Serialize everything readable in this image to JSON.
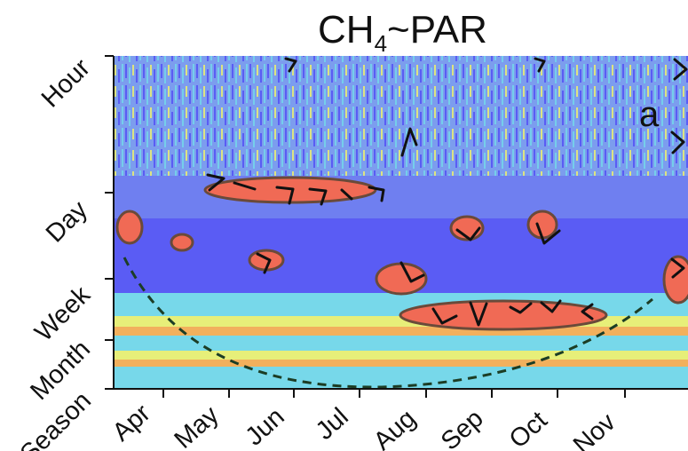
{
  "chart_data": {
    "type": "heatmap",
    "title": {
      "main": "CH",
      "subscript": "4",
      "rest": "~PAR"
    },
    "panel_label": "a",
    "x_ticks": [
      "Apr",
      "May",
      "Jun",
      "Jul",
      "Aug",
      "Sep",
      "Oct",
      "Nov"
    ],
    "y_ticks": [
      "Hour",
      "Day",
      "Week",
      "Month",
      "Season"
    ],
    "grid": false,
    "legend": "none",
    "colormap": [
      "#5a5cf4",
      "#7fa3ee",
      "#77d8ea",
      "#e7ef79",
      "#f2b05d",
      "#f06a55"
    ],
    "significance_contour_color": "#6a4a3a",
    "cone_of_influence_color": "#1c3d25",
    "phase_arrow_color": "#111111"
  }
}
